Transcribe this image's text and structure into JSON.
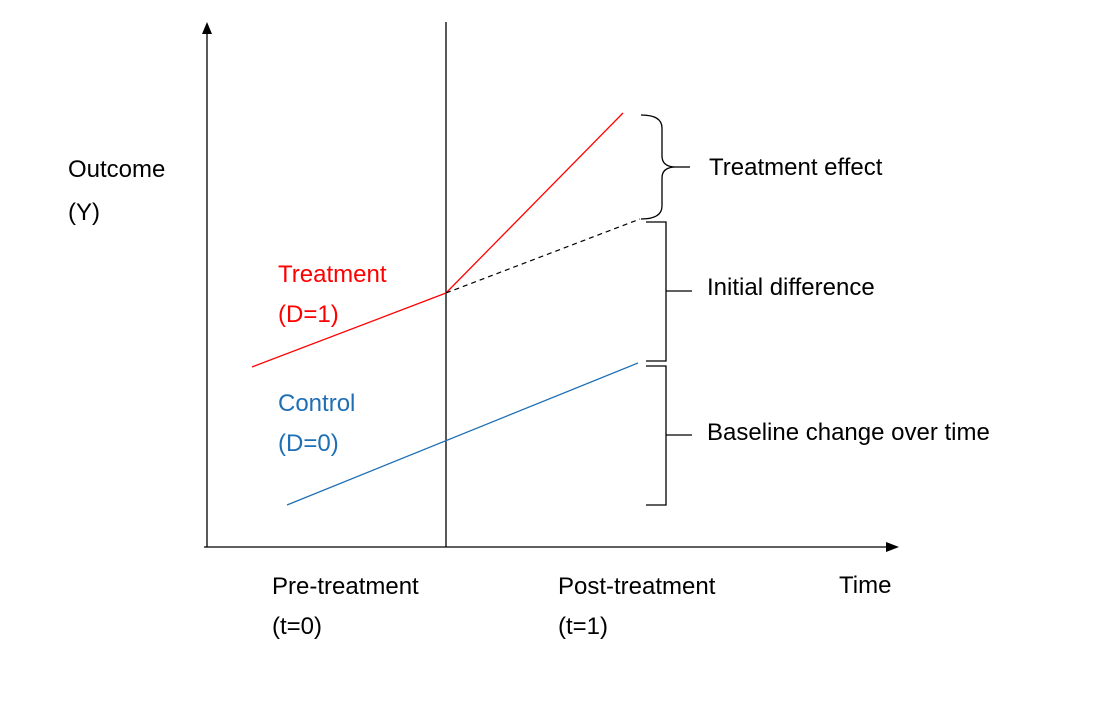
{
  "labels": {
    "y_axis_line1": "Outcome",
    "y_axis_line2": "(Y)",
    "x_axis": "Time",
    "pre_line1": "Pre-treatment",
    "pre_line2": "(t=0)",
    "post_line1": "Post-treatment",
    "post_line2": "(t=1)",
    "treatment_line1": "Treatment",
    "treatment_line2": "(D=1)",
    "control_line1": "Control",
    "control_line2": "(D=0)",
    "brace_top": "Treatment effect",
    "brace_middle": "Initial difference",
    "brace_bottom": "Baseline change over time"
  },
  "colors": {
    "treatment": "#ff0000",
    "control": "#1f6fb5",
    "text": "#000000",
    "axis": "#000000"
  },
  "icons": {
    "y_axis_arrow": "arrow-up",
    "x_axis_arrow": "arrow-right"
  }
}
